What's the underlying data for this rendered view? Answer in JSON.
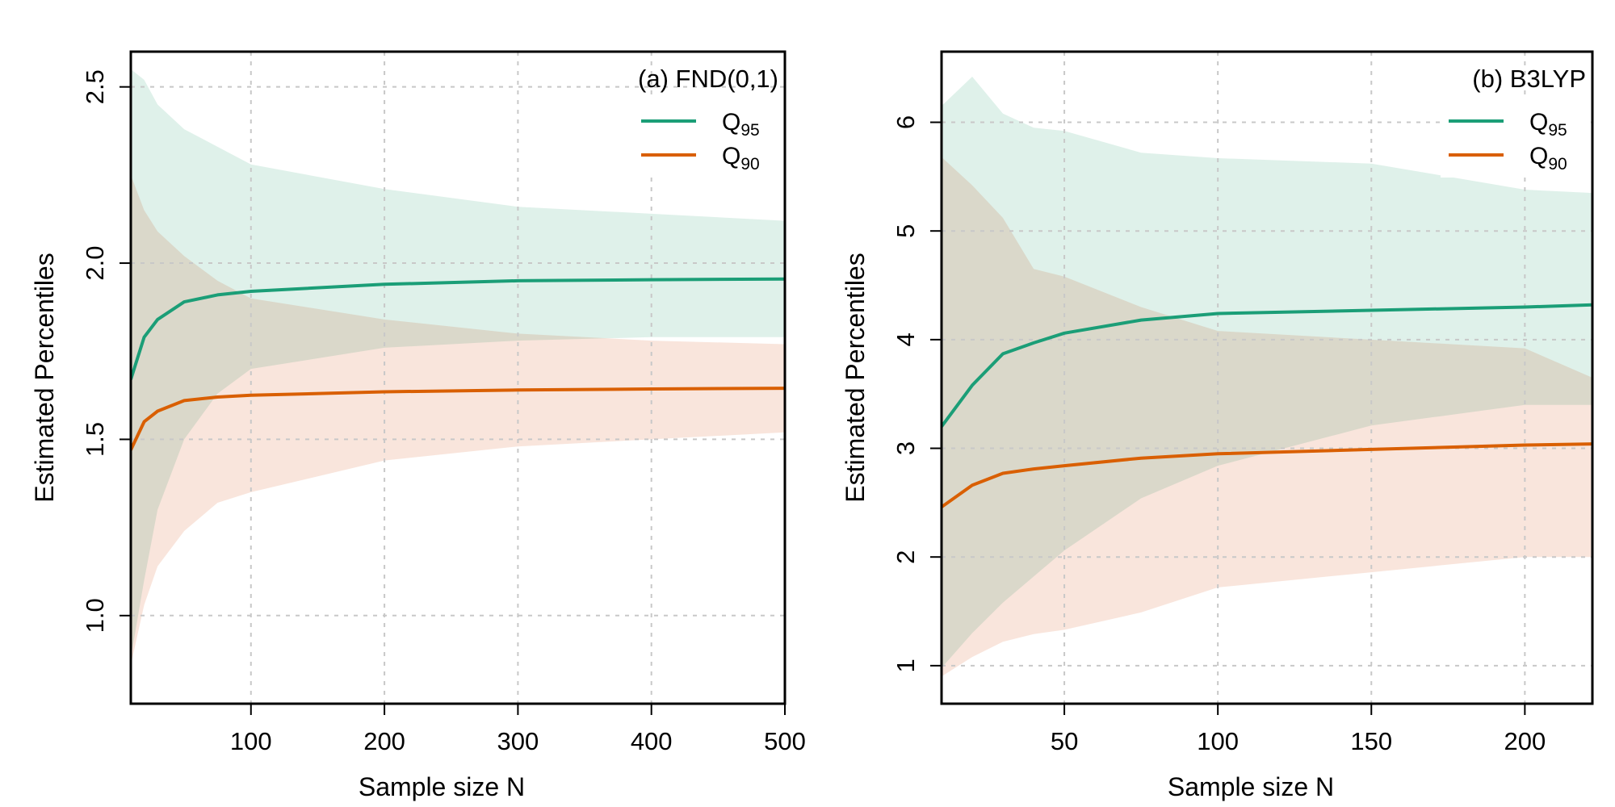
{
  "chart_data": [
    {
      "type": "line",
      "panel_label": "(a) FND(0,1)",
      "xlabel": "Sample size N",
      "ylabel": "Estimated Percentiles",
      "xlim": [
        10,
        500
      ],
      "ylim": [
        0.75,
        2.6
      ],
      "xticks": [
        100,
        200,
        300,
        400,
        500
      ],
      "yticks": [
        1.0,
        1.5,
        2.0,
        2.5
      ],
      "ytick_labels": [
        "1.0",
        "1.5",
        "2.0",
        "2.5"
      ],
      "grid": true,
      "legend_position": "top-right",
      "series": [
        {
          "name": "Q95",
          "legend_main": "Q",
          "legend_sub": "95",
          "color": "#1b9e77",
          "band_color": "#d9eee6",
          "x": [
            10,
            20,
            30,
            50,
            75,
            100,
            200,
            300,
            400,
            500
          ],
          "values": [
            1.67,
            1.79,
            1.84,
            1.89,
            1.91,
            1.92,
            1.94,
            1.95,
            1.953,
            1.955
          ],
          "upper": [
            2.55,
            2.52,
            2.45,
            2.38,
            2.33,
            2.28,
            2.21,
            2.16,
            2.14,
            2.12
          ],
          "lower": [
            0.88,
            1.1,
            1.3,
            1.5,
            1.63,
            1.7,
            1.76,
            1.78,
            1.79,
            1.79
          ]
        },
        {
          "name": "Q90",
          "legend_main": "Q",
          "legend_sub": "90",
          "color": "#d95f02",
          "band_color": "#f8e0d6",
          "x": [
            10,
            20,
            30,
            50,
            75,
            100,
            200,
            300,
            400,
            500
          ],
          "values": [
            1.47,
            1.55,
            1.58,
            1.61,
            1.62,
            1.625,
            1.635,
            1.64,
            1.643,
            1.645
          ],
          "upper": [
            2.25,
            2.15,
            2.09,
            2.02,
            1.95,
            1.9,
            1.84,
            1.8,
            1.78,
            1.77
          ],
          "lower": [
            0.86,
            1.03,
            1.14,
            1.24,
            1.32,
            1.35,
            1.44,
            1.48,
            1.5,
            1.52
          ]
        }
      ]
    },
    {
      "type": "line",
      "panel_label": "(b) B3LYP",
      "xlabel": "Sample size N",
      "ylabel": "Estimated Percentiles",
      "xlim": [
        10,
        222
      ],
      "ylim": [
        0.65,
        6.65
      ],
      "xticks": [
        50,
        100,
        150,
        200
      ],
      "yticks": [
        1,
        2,
        3,
        4,
        5,
        6
      ],
      "ytick_labels": [
        "1",
        "2",
        "3",
        "4",
        "5",
        "6"
      ],
      "grid": true,
      "legend_position": "top-right",
      "series": [
        {
          "name": "Q95",
          "legend_main": "Q",
          "legend_sub": "95",
          "color": "#1b9e77",
          "band_color": "#d9eee6",
          "x": [
            10,
            20,
            30,
            40,
            50,
            75,
            100,
            150,
            200,
            222
          ],
          "values": [
            3.2,
            3.58,
            3.87,
            3.97,
            4.06,
            4.18,
            4.24,
            4.27,
            4.3,
            4.32
          ],
          "upper": [
            6.15,
            6.42,
            6.08,
            5.95,
            5.92,
            5.72,
            5.67,
            5.62,
            5.38,
            5.35
          ],
          "lower": [
            0.98,
            1.3,
            1.58,
            1.82,
            2.06,
            2.54,
            2.84,
            3.21,
            3.4,
            3.4
          ]
        },
        {
          "name": "Q90",
          "legend_main": "Q",
          "legend_sub": "90",
          "color": "#d95f02",
          "band_color": "#f8e0d6",
          "x": [
            10,
            20,
            30,
            40,
            50,
            75,
            100,
            150,
            200,
            222
          ],
          "values": [
            2.46,
            2.66,
            2.77,
            2.81,
            2.84,
            2.91,
            2.95,
            2.99,
            3.03,
            3.04
          ],
          "upper": [
            5.68,
            5.42,
            5.12,
            4.65,
            4.58,
            4.3,
            4.08,
            4.0,
            3.92,
            3.65
          ],
          "lower": [
            0.9,
            1.08,
            1.22,
            1.29,
            1.33,
            1.49,
            1.72,
            1.86,
            2.0,
            2.0
          ]
        }
      ]
    }
  ]
}
